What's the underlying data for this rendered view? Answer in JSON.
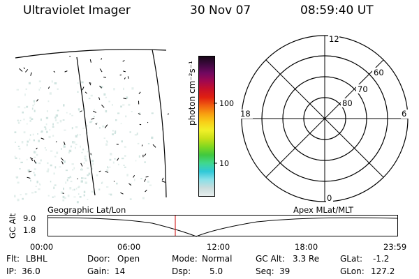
{
  "header": {
    "instrument": "Ultraviolet Imager",
    "date": "30 Nov 07",
    "time": "08:59:40 UT"
  },
  "colorbar": {
    "label": "photon cm⁻²s⁻¹",
    "ticks": [
      "100",
      "10"
    ],
    "colors": [
      "#e8eeee",
      "#c8dcdc",
      "#88e0e8",
      "#30c8d8",
      "#40d890",
      "#40c840",
      "#80d820",
      "#c8e018",
      "#f0f028",
      "#f8d018",
      "#f8a010",
      "#f06010",
      "#e02010",
      "#c81028",
      "#a00850",
      "#700860",
      "#400840",
      "#180818"
    ]
  },
  "polar": {
    "labels": {
      "top": "12",
      "left": "18",
      "right": "6",
      "bottom": "0",
      "lat60": "60",
      "lat70": "70",
      "lat80": "80"
    }
  },
  "altitude_plot": {
    "ylabel": "GC Alt",
    "y_ticks": [
      "9.0",
      "1.8"
    ],
    "left_caption": "Geographic Lat/Lon",
    "right_caption": "Apex MLat/MLT",
    "x_ticks": [
      "00:00",
      "06:00",
      "12:00",
      "18:00",
      "23:59"
    ]
  },
  "info": {
    "row1": [
      {
        "label": "Flt:",
        "value": "LBHL"
      },
      {
        "label": "Door:",
        "value": "Open"
      },
      {
        "label": "Mode:",
        "value": "Normal"
      },
      {
        "label": "GC Alt:",
        "value": "3.3 Re"
      },
      {
        "label": "GLat:",
        "value": "-1.2"
      }
    ],
    "row2": [
      {
        "label": "IP:",
        "value": "36.0"
      },
      {
        "label": "Gain:",
        "value": "14"
      },
      {
        "label": "Dsp:",
        "value": "5.0"
      },
      {
        "label": "Seq:",
        "value": "39"
      },
      {
        "label": "GLon:",
        "value": "127.2"
      }
    ]
  }
}
